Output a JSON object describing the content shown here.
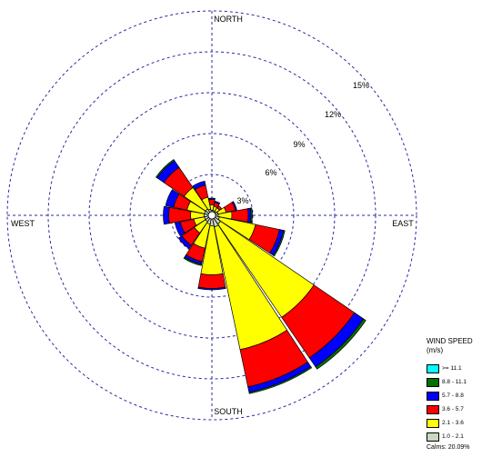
{
  "chart_data": {
    "type": "windrose",
    "directions": [
      "N",
      "NNE",
      "NE",
      "ENE",
      "E",
      "ESE",
      "SE",
      "SSE",
      "S",
      "SSW",
      "SW",
      "WSW",
      "W",
      "WNW",
      "NW",
      "NNW"
    ],
    "direction_labels": {
      "north": "NORTH",
      "east": "EAST",
      "south": "SOUTH",
      "west": "WEST"
    },
    "rings": [
      3,
      6,
      9,
      12,
      15
    ],
    "ring_labels": [
      "3%",
      "6%",
      "9%",
      "12%",
      "15%"
    ],
    "max_percent": 15,
    "legend_title_line1": "WIND SPEED",
    "legend_title_line2": "(m/s)",
    "calms_text": "Calms: 20.09%",
    "speed_bins": [
      {
        "label": "1.0 - 2.1",
        "color": "#c8d8c0"
      },
      {
        "label": "2.1 - 3.6",
        "color": "#ffff00"
      },
      {
        "label": "3.6 - 5.7",
        "color": "#ff0000"
      },
      {
        "label": "5.7 - 8.8",
        "color": "#0000ff"
      },
      {
        "label": "8.8 - 11.1",
        "color": "#007000"
      },
      {
        "label": ">= 11.1",
        "color": "#00ffff"
      }
    ],
    "series": [
      {
        "label": "1.0 - 2.1",
        "values": [
          0.1,
          0.1,
          0.1,
          0.2,
          0.2,
          0.3,
          0.5,
          0.6,
          0.5,
          0.4,
          0.3,
          0.3,
          0.3,
          0.3,
          0.3,
          0.2
        ]
      },
      {
        "label": "2.1 - 3.6",
        "values": [
          0.4,
          0.3,
          0.3,
          0.6,
          1.0,
          2.7,
          8.3,
          9.2,
          3.6,
          1.8,
          1.0,
          0.8,
          1.0,
          1.3,
          1.9,
          0.9
        ]
      },
      {
        "label": "3.6 - 5.7",
        "values": [
          0.4,
          0.3,
          0.2,
          0.7,
          1.2,
          1.8,
          3.6,
          2.8,
          1.0,
          1.0,
          1.1,
          1.0,
          1.6,
          1.0,
          1.8,
          0.9
        ]
      },
      {
        "label": "5.7 - 8.8",
        "values": [
          0.1,
          0.1,
          0.0,
          0.1,
          0.2,
          0.3,
          0.8,
          0.4,
          0.1,
          0.2,
          0.3,
          0.4,
          0.4,
          0.6,
          0.6,
          0.3
        ]
      },
      {
        "label": "8.8 - 11.1",
        "values": [
          0.0,
          0.0,
          0.0,
          0.0,
          0.1,
          0.1,
          0.2,
          0.1,
          0.0,
          0.1,
          0.0,
          0.0,
          0.0,
          0.0,
          0.1,
          0.0
        ]
      },
      {
        "label": ">= 11.1",
        "values": [
          0,
          0,
          0,
          0,
          0,
          0,
          0,
          0,
          0,
          0,
          0,
          0,
          0,
          0,
          0,
          0
        ]
      }
    ]
  }
}
